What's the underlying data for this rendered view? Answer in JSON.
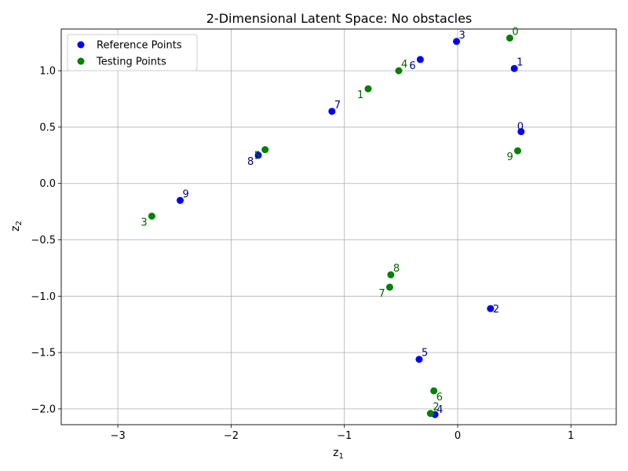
{
  "chart_data": {
    "type": "scatter",
    "title": "2-Dimensional Latent Space: No obstacles",
    "xlabel": "z",
    "xlabel_sub": "1",
    "ylabel": "z",
    "ylabel_sub": "2",
    "xlim": [
      -3.5,
      1.4
    ],
    "ylim": [
      -2.14,
      1.37
    ],
    "xticks": [
      -3,
      -2,
      -1,
      0,
      1
    ],
    "yticks": [
      -2.0,
      -1.5,
      -1.0,
      -0.5,
      0.0,
      0.5,
      1.0
    ],
    "grid": true,
    "legend_position": "top-left",
    "series": [
      {
        "name": "Reference Points",
        "color": "#0000ff",
        "label_color": "#00008b",
        "points": [
          {
            "label": "0",
            "x": 0.56,
            "y": 0.46
          },
          {
            "label": "1",
            "x": 0.5,
            "y": 1.02
          },
          {
            "label": "2",
            "x": 0.29,
            "y": -1.11
          },
          {
            "label": "3",
            "x": -0.01,
            "y": 1.26
          },
          {
            "label": "4",
            "x": -0.2,
            "y": -2.05
          },
          {
            "label": "5",
            "x": -0.34,
            "y": -1.56
          },
          {
            "label": "6",
            "x": -0.33,
            "y": 1.1
          },
          {
            "label": "7",
            "x": -1.11,
            "y": 0.64
          },
          {
            "label": "8",
            "x": -1.76,
            "y": 0.25
          },
          {
            "label": "9",
            "x": -2.45,
            "y": -0.15
          }
        ]
      },
      {
        "name": "Testing Points",
        "color": "#008000",
        "label_color": "#006400",
        "points": [
          {
            "label": "0",
            "x": 0.46,
            "y": 1.29
          },
          {
            "label": "1",
            "x": -0.79,
            "y": 0.84
          },
          {
            "label": "2",
            "x": -0.24,
            "y": -2.04
          },
          {
            "label": "3",
            "x": -2.7,
            "y": -0.29
          },
          {
            "label": "4",
            "x": -0.52,
            "y": 1.0
          },
          {
            "label": "5",
            "x": -1.7,
            "y": 0.3
          },
          {
            "label": "6",
            "x": -0.21,
            "y": -1.84
          },
          {
            "label": "7",
            "x": -0.6,
            "y": -0.92
          },
          {
            "label": "8",
            "x": -0.59,
            "y": -0.81
          },
          {
            "label": "9",
            "x": 0.53,
            "y": 0.29
          }
        ]
      }
    ]
  }
}
